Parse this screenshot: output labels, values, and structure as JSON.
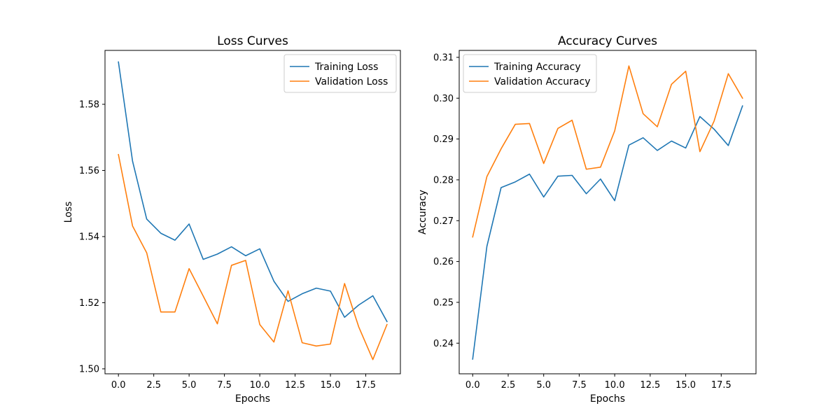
{
  "chart_data": [
    {
      "type": "line",
      "title": "Loss Curves",
      "xlabel": "Epochs",
      "ylabel": "Loss",
      "xlim": [
        -0.95,
        19.95
      ],
      "ylim": [
        1.4985,
        1.5963
      ],
      "xticks": [
        0,
        2.5,
        5,
        7.5,
        10,
        12.5,
        15,
        17.5
      ],
      "xtick_labels": [
        "0.0",
        "2.5",
        "5.0",
        "7.5",
        "10.0",
        "12.5",
        "15.0",
        "17.5"
      ],
      "yticks": [
        1.5,
        1.52,
        1.54,
        1.56,
        1.58
      ],
      "ytick_labels": [
        "1.50",
        "1.52",
        "1.54",
        "1.56",
        "1.58"
      ],
      "legend_position": "top-right",
      "grid": false,
      "x": [
        0,
        1,
        2,
        3,
        4,
        5,
        6,
        7,
        8,
        9,
        10,
        11,
        12,
        13,
        14,
        15,
        16,
        17,
        18,
        19
      ],
      "series": [
        {
          "name": "Training Loss",
          "color": "#1f77b4",
          "values": [
            1.5928,
            1.5628,
            1.5453,
            1.541,
            1.5389,
            1.5438,
            1.5331,
            1.5347,
            1.5369,
            1.5342,
            1.5363,
            1.5265,
            1.5204,
            1.5227,
            1.5244,
            1.5235,
            1.5156,
            1.5193,
            1.5221,
            1.5143
          ]
        },
        {
          "name": "Validation Loss",
          "color": "#ff7f0e",
          "values": [
            1.5648,
            1.5432,
            1.5351,
            1.5172,
            1.5172,
            1.5303,
            1.522,
            1.5136,
            1.5313,
            1.5328,
            1.5134,
            1.5081,
            1.5236,
            1.5079,
            1.5069,
            1.5075,
            1.5258,
            1.5127,
            1.5028,
            1.5134
          ]
        }
      ]
    },
    {
      "type": "line",
      "title": "Accuracy Curves",
      "xlabel": "Epochs",
      "ylabel": "Accuracy",
      "xlim": [
        -0.95,
        19.95
      ],
      "ylim": [
        0.2325,
        0.3117
      ],
      "xticks": [
        0,
        2.5,
        5,
        7.5,
        10,
        12.5,
        15,
        17.5
      ],
      "xtick_labels": [
        "0.0",
        "2.5",
        "5.0",
        "7.5",
        "10.0",
        "12.5",
        "15.0",
        "17.5"
      ],
      "yticks": [
        0.24,
        0.25,
        0.26,
        0.27,
        0.28,
        0.29,
        0.3,
        0.31
      ],
      "ytick_labels": [
        "0.24",
        "0.25",
        "0.26",
        "0.27",
        "0.28",
        "0.29",
        "0.30",
        "0.31"
      ],
      "legend_position": "top-left",
      "grid": false,
      "x": [
        0,
        1,
        2,
        3,
        4,
        5,
        6,
        7,
        8,
        9,
        10,
        11,
        12,
        13,
        14,
        15,
        16,
        17,
        18,
        19
      ],
      "series": [
        {
          "name": "Training Accuracy",
          "color": "#1f77b4",
          "values": [
            0.2361,
            0.2637,
            0.2781,
            0.2795,
            0.2814,
            0.2758,
            0.2809,
            0.2811,
            0.2766,
            0.2802,
            0.2749,
            0.2885,
            0.2903,
            0.2872,
            0.2895,
            0.2878,
            0.2955,
            0.2924,
            0.2884,
            0.2981
          ]
        },
        {
          "name": "Validation Accuracy",
          "color": "#ff7f0e",
          "values": [
            0.266,
            0.2808,
            0.2876,
            0.2936,
            0.2938,
            0.284,
            0.2926,
            0.2946,
            0.2826,
            0.2831,
            0.292,
            0.3079,
            0.2962,
            0.293,
            0.3034,
            0.3066,
            0.2869,
            0.2944,
            0.306,
            0.3
          ]
        }
      ]
    }
  ]
}
